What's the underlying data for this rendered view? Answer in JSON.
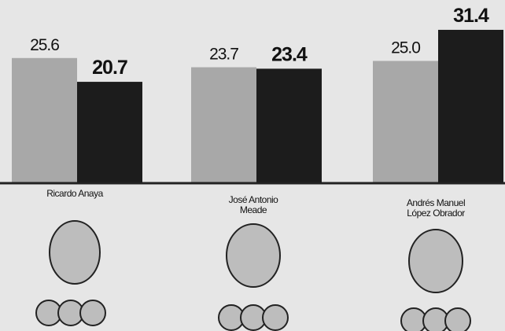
{
  "chart_data": {
    "type": "bar",
    "categories": [
      "Ricardo Anaya",
      "José Antonio Meade",
      "Andrés Manuel López Obrador"
    ],
    "series": [
      {
        "color": "#a8a8a8",
        "values": [
          25.6,
          23.7,
          25.0
        ],
        "value_labels": [
          "25.6",
          "23.7",
          "25.0"
        ]
      },
      {
        "color": "#1c1c1c",
        "values": [
          20.7,
          23.4,
          31.4
        ],
        "value_labels": [
          "20.7",
          "23.4",
          "31.4"
        ]
      }
    ]
  }
}
